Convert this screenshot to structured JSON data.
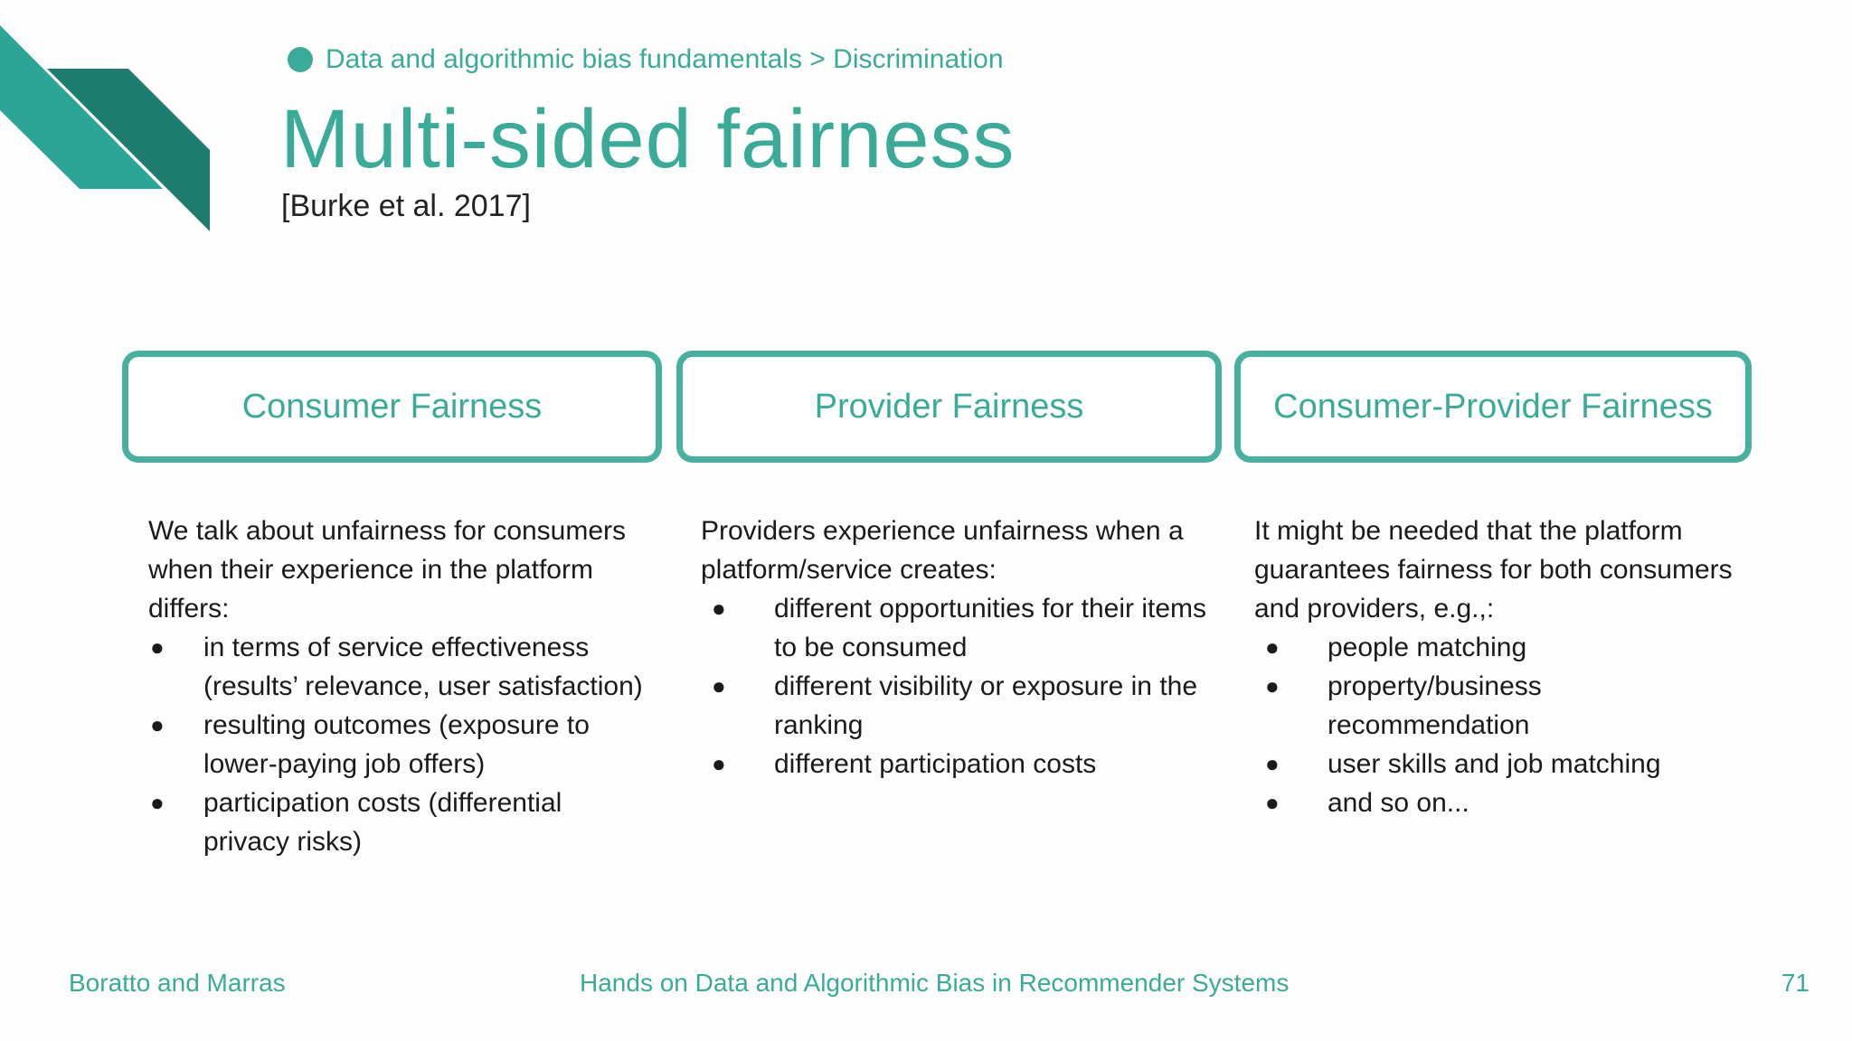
{
  "breadcrumb": "Data and algorithmic bias fundamentals > Discrimination",
  "title": "Multi-sided fairness",
  "citation": "[Burke et al. 2017]",
  "columns": [
    {
      "heading": "Consumer Fairness",
      "intro": "We talk about unfairness for consumers when their experience in the platform differs:",
      "bullets": [
        "in terms of service effectiveness (results’  relevance, user satisfaction)",
        "resulting outcomes (exposure to lower-paying job offers)",
        "participation costs (differential privacy risks)"
      ]
    },
    {
      "heading": "Provider Fairness",
      "intro": "Providers experience unfairness when a platform/service creates:",
      "bullets": [
        "different opportunities for their items to be consumed",
        "different visibility or exposure in the ranking",
        "different participation costs"
      ]
    },
    {
      "heading": "Consumer-Provider Fairness",
      "intro": "It might be needed that the platform guarantees fairness for both consumers and providers, e.g.,:",
      "bullets": [
        "people matching",
        "property/business recommendation",
        "user skills and job matching",
        "and so on..."
      ]
    }
  ],
  "bullet_glyph": "●",
  "footer": {
    "left": "Boratto and Marras",
    "center": "Hands on Data and Algorithmic Bias in Recommender Systems",
    "page_number": "71"
  },
  "colors": {
    "accent": "#3aab98",
    "box_border": "#47b09e",
    "corner_light": "#2aa596",
    "corner_dark": "#1e7d6f"
  }
}
